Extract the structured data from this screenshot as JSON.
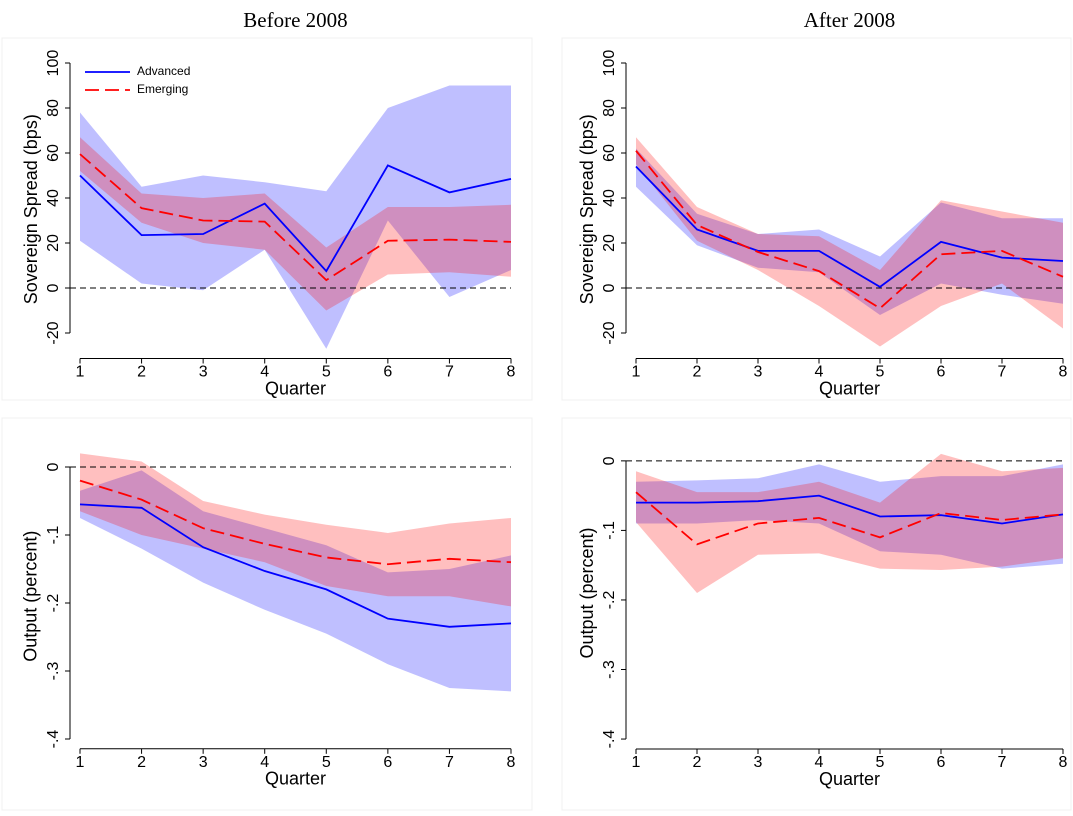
{
  "chart_data": [
    {
      "type": "line",
      "title": "Before 2008",
      "xlabel": "Quarter",
      "ylabel": "Sovereign Spread (bps)",
      "x": [
        1,
        2,
        3,
        4,
        5,
        6,
        7,
        8
      ],
      "xlim": [
        1,
        8
      ],
      "xticks": [
        1,
        2,
        3,
        4,
        5,
        6,
        7,
        8
      ],
      "ylim": [
        -30,
        100
      ],
      "yticks": [
        -20,
        0,
        20,
        40,
        60,
        80,
        100
      ],
      "reference_line": 0,
      "legend": "top-left",
      "series": [
        {
          "name": "Advanced",
          "color": "#0000ff",
          "style": "solid",
          "values": [
            50,
            23.5,
            24,
            37.5,
            7.5,
            54.5,
            42.5,
            48.5
          ],
          "lower": [
            21,
            2,
            -1,
            17,
            -27,
            30,
            -4,
            8
          ],
          "upper": [
            78,
            45,
            50,
            47,
            43,
            80,
            90,
            90
          ]
        },
        {
          "name": "Emerging",
          "color": "#ff0000",
          "style": "dashed",
          "values": [
            59.5,
            35.5,
            30,
            29.5,
            3.5,
            21,
            21.5,
            20.5
          ],
          "lower": [
            52,
            29,
            20,
            17,
            -10,
            6,
            7,
            5
          ],
          "upper": [
            67,
            42,
            40,
            42,
            18,
            36,
            36,
            37
          ]
        }
      ]
    },
    {
      "type": "line",
      "title": "After 2008",
      "xlabel": "Quarter",
      "ylabel": "Sovereign Spread (bps)",
      "x": [
        1,
        2,
        3,
        4,
        5,
        6,
        7,
        8
      ],
      "xlim": [
        1,
        8
      ],
      "xticks": [
        1,
        2,
        3,
        4,
        5,
        6,
        7,
        8
      ],
      "ylim": [
        -30,
        100
      ],
      "yticks": [
        -20,
        0,
        20,
        40,
        60,
        80,
        100
      ],
      "reference_line": 0,
      "series": [
        {
          "name": "Advanced",
          "color": "#0000ff",
          "style": "solid",
          "values": [
            54,
            26,
            16.5,
            16.5,
            0.5,
            20.5,
            13.5,
            12
          ],
          "lower": [
            45,
            19,
            9,
            7,
            -12,
            2,
            -3,
            -7
          ],
          "upper": [
            62,
            33,
            24,
            26,
            14,
            38,
            31,
            31
          ]
        },
        {
          "name": "Emerging",
          "color": "#ff0000",
          "style": "dashed",
          "values": [
            61,
            28,
            16,
            7.5,
            -9,
            15,
            16.5,
            5
          ],
          "lower": [
            55,
            21,
            8,
            -8,
            -26,
            -8,
            2,
            -18
          ],
          "upper": [
            67,
            36,
            24,
            23,
            8,
            39,
            34,
            29
          ]
        }
      ]
    },
    {
      "type": "line",
      "xlabel": "Quarter",
      "ylabel": "Output (percent)",
      "x": [
        1,
        2,
        3,
        4,
        5,
        6,
        7,
        8
      ],
      "xlim": [
        1,
        8
      ],
      "xticks": [
        1,
        2,
        3,
        4,
        5,
        6,
        7,
        8
      ],
      "ylim": [
        -0.41,
        0.03
      ],
      "yticks": [
        {
          "value": -0.4,
          "label": "-.4"
        },
        {
          "value": -0.3,
          "label": "-.3"
        },
        {
          "value": -0.2,
          "label": "-.2"
        },
        {
          "value": -0.1,
          "label": "-.1"
        },
        0
      ],
      "reference_line": 0,
      "series": [
        {
          "name": "Advanced",
          "color": "#0000ff",
          "style": "solid",
          "values": [
            -0.055,
            -0.06,
            -0.118,
            -0.153,
            -0.18,
            -0.223,
            -0.235,
            -0.23
          ],
          "lower": [
            -0.075,
            -0.12,
            -0.17,
            -0.21,
            -0.245,
            -0.29,
            -0.325,
            -0.33
          ],
          "upper": [
            -0.035,
            -0.005,
            -0.065,
            -0.09,
            -0.115,
            -0.155,
            -0.15,
            -0.13
          ]
        },
        {
          "name": "Emerging",
          "color": "#ff0000",
          "style": "dashed",
          "values": [
            -0.02,
            -0.048,
            -0.09,
            -0.113,
            -0.133,
            -0.143,
            -0.135,
            -0.14
          ],
          "lower": [
            -0.065,
            -0.1,
            -0.12,
            -0.14,
            -0.175,
            -0.19,
            -0.19,
            -0.205
          ],
          "upper": [
            0.02,
            0.008,
            -0.05,
            -0.07,
            -0.085,
            -0.097,
            -0.083,
            -0.075
          ]
        }
      ]
    },
    {
      "type": "line",
      "xlabel": "Quarter",
      "ylabel": "Output (percent)",
      "x": [
        1,
        2,
        3,
        4,
        5,
        6,
        7,
        8
      ],
      "xlim": [
        1,
        8
      ],
      "xticks": [
        1,
        2,
        3,
        4,
        5,
        6,
        7,
        8
      ],
      "ylim": [
        -0.41,
        0.03
      ],
      "yticks": [
        {
          "value": -0.4,
          "label": "-.4"
        },
        {
          "value": -0.3,
          "label": "-.3"
        },
        {
          "value": -0.2,
          "label": "-.2"
        },
        {
          "value": -0.1,
          "label": "-.1"
        },
        0
      ],
      "reference_line": 0,
      "series": [
        {
          "name": "Advanced",
          "color": "#0000ff",
          "style": "solid",
          "values": [
            -0.06,
            -0.06,
            -0.058,
            -0.05,
            -0.08,
            -0.078,
            -0.09,
            -0.077
          ],
          "lower": [
            -0.09,
            -0.09,
            -0.085,
            -0.09,
            -0.13,
            -0.135,
            -0.155,
            -0.148
          ],
          "upper": [
            -0.03,
            -0.028,
            -0.025,
            -0.005,
            -0.03,
            -0.022,
            -0.022,
            -0.005
          ]
        },
        {
          "name": "Emerging",
          "color": "#ff0000",
          "style": "dashed",
          "values": [
            -0.045,
            -0.12,
            -0.09,
            -0.082,
            -0.11,
            -0.075,
            -0.085,
            -0.077
          ],
          "lower": [
            -0.088,
            -0.19,
            -0.135,
            -0.133,
            -0.155,
            -0.157,
            -0.152,
            -0.14
          ],
          "upper": [
            -0.015,
            -0.045,
            -0.045,
            -0.03,
            -0.06,
            0.01,
            -0.015,
            -0.01
          ]
        }
      ]
    }
  ]
}
